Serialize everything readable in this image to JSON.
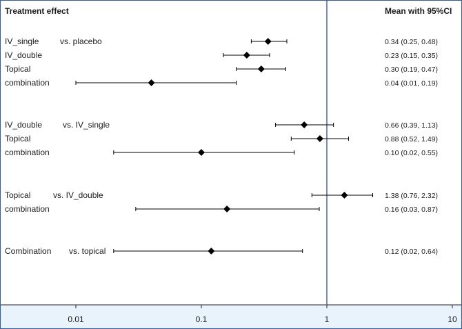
{
  "chart_data": {
    "type": "forest",
    "header_left": "Treatment effect",
    "header_right": "Mean with 95%CI",
    "x_scale": "log",
    "xlim": [
      0.003,
      10
    ],
    "x_ticks": [
      0.01,
      0.1,
      1,
      10
    ],
    "x_tick_labels": [
      "0.01",
      "0.1",
      "1",
      "10"
    ],
    "reference_line": 1,
    "colors": {
      "axis_band": "#e8f3fb",
      "reference_line": "#2e4f9e",
      "frame": "#2e5aa8",
      "marker": "#000000"
    },
    "groups": [
      {
        "comparator": "vs. placebo",
        "rows": [
          {
            "label": "IV_single",
            "mean": 0.34,
            "lower": 0.25,
            "upper": 0.48,
            "ci_text": "0.34 (0.25, 0.48)"
          },
          {
            "label": "IV_double",
            "mean": 0.23,
            "lower": 0.15,
            "upper": 0.35,
            "ci_text": "0.23 (0.15, 0.35)"
          },
          {
            "label": "Topical",
            "mean": 0.3,
            "lower": 0.19,
            "upper": 0.47,
            "ci_text": "0.30 (0.19, 0.47)"
          },
          {
            "label": "combination",
            "mean": 0.04,
            "lower": 0.01,
            "upper": 0.19,
            "ci_text": "0.04 (0.01, 0.19)"
          }
        ]
      },
      {
        "comparator": "vs. IV_single",
        "rows": [
          {
            "label": "IV_double",
            "mean": 0.66,
            "lower": 0.39,
            "upper": 1.13,
            "ci_text": "0.66 (0.39, 1.13)"
          },
          {
            "label": "Topical",
            "mean": 0.88,
            "lower": 0.52,
            "upper": 1.49,
            "ci_text": "0.88 (0.52, 1.49)"
          },
          {
            "label": "combination",
            "mean": 0.1,
            "lower": 0.02,
            "upper": 0.55,
            "ci_text": "0.10 (0.02, 0.55)"
          }
        ]
      },
      {
        "comparator": "vs. IV_double",
        "rows": [
          {
            "label": "Topical",
            "mean": 1.38,
            "lower": 0.76,
            "upper": 2.32,
            "ci_text": "1.38 (0.76, 2.32)"
          },
          {
            "label": "combination",
            "mean": 0.16,
            "lower": 0.03,
            "upper": 0.87,
            "ci_text": "0.16 (0.03, 0.87)"
          }
        ]
      },
      {
        "comparator": "vs. topical",
        "rows": [
          {
            "label": "Combination",
            "mean": 0.12,
            "lower": 0.02,
            "upper": 0.64,
            "ci_text": "0.12 (0.02, 0.64)"
          }
        ]
      }
    ]
  }
}
